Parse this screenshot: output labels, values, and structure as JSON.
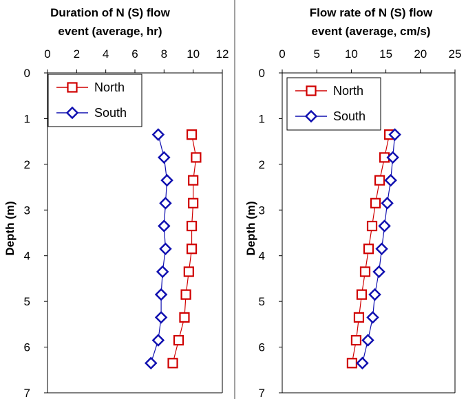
{
  "chart_data": [
    {
      "type": "scatter",
      "title_lines": [
        "Duration of N (S) flow",
        "event (average, hr)"
      ],
      "xlabel": "",
      "ylabel": "Depth (m)",
      "xlim": [
        0,
        12
      ],
      "xticks": [
        0,
        2,
        4,
        6,
        8,
        10,
        12
      ],
      "ylim": [
        0,
        7
      ],
      "yticks": [
        0,
        1,
        2,
        3,
        4,
        5,
        6,
        7
      ],
      "y_inverted": true,
      "x_axis_position": "top",
      "grid": false,
      "legend_position": "top-left",
      "series": [
        {
          "name": "North",
          "marker": "square",
          "color": "#d00000",
          "points": [
            {
              "x": 9.9,
              "y": 1.35
            },
            {
              "x": 10.2,
              "y": 1.85
            },
            {
              "x": 10.0,
              "y": 2.35
            },
            {
              "x": 10.0,
              "y": 2.85
            },
            {
              "x": 9.9,
              "y": 3.35
            },
            {
              "x": 9.9,
              "y": 3.85
            },
            {
              "x": 9.7,
              "y": 4.35
            },
            {
              "x": 9.5,
              "y": 4.85
            },
            {
              "x": 9.4,
              "y": 5.35
            },
            {
              "x": 9.0,
              "y": 5.85
            },
            {
              "x": 8.6,
              "y": 6.35
            }
          ]
        },
        {
          "name": "South",
          "marker": "diamond",
          "color": "#1010b0",
          "points": [
            {
              "x": 7.6,
              "y": 1.35
            },
            {
              "x": 8.0,
              "y": 1.85
            },
            {
              "x": 8.2,
              "y": 2.35
            },
            {
              "x": 8.1,
              "y": 2.85
            },
            {
              "x": 8.0,
              "y": 3.35
            },
            {
              "x": 8.1,
              "y": 3.85
            },
            {
              "x": 7.9,
              "y": 4.35
            },
            {
              "x": 7.8,
              "y": 4.85
            },
            {
              "x": 7.8,
              "y": 5.35
            },
            {
              "x": 7.6,
              "y": 5.85
            },
            {
              "x": 7.1,
              "y": 6.35
            }
          ]
        }
      ]
    },
    {
      "type": "scatter",
      "title_lines": [
        "Flow rate of N (S) flow",
        "event (average, cm/s)"
      ],
      "xlabel": "",
      "ylabel": "Depth (m)",
      "xlim": [
        0,
        25
      ],
      "xticks": [
        0,
        5,
        10,
        15,
        20,
        25
      ],
      "ylim": [
        0,
        7
      ],
      "yticks": [
        0,
        1,
        2,
        3,
        4,
        5,
        6,
        7
      ],
      "y_inverted": true,
      "x_axis_position": "top",
      "grid": false,
      "legend_position": "top-left",
      "series": [
        {
          "name": "North",
          "marker": "square",
          "color": "#d00000",
          "points": [
            {
              "x": 15.5,
              "y": 1.35
            },
            {
              "x": 14.8,
              "y": 1.85
            },
            {
              "x": 14.1,
              "y": 2.35
            },
            {
              "x": 13.5,
              "y": 2.85
            },
            {
              "x": 13.0,
              "y": 3.35
            },
            {
              "x": 12.5,
              "y": 3.85
            },
            {
              "x": 12.0,
              "y": 4.35
            },
            {
              "x": 11.5,
              "y": 4.85
            },
            {
              "x": 11.1,
              "y": 5.35
            },
            {
              "x": 10.7,
              "y": 5.85
            },
            {
              "x": 10.1,
              "y": 6.35
            }
          ]
        },
        {
          "name": "South",
          "marker": "diamond",
          "color": "#1010b0",
          "points": [
            {
              "x": 16.3,
              "y": 1.35
            },
            {
              "x": 16.0,
              "y": 1.85
            },
            {
              "x": 15.7,
              "y": 2.35
            },
            {
              "x": 15.2,
              "y": 2.85
            },
            {
              "x": 14.8,
              "y": 3.35
            },
            {
              "x": 14.4,
              "y": 3.85
            },
            {
              "x": 14.0,
              "y": 4.35
            },
            {
              "x": 13.4,
              "y": 4.85
            },
            {
              "x": 13.1,
              "y": 5.35
            },
            {
              "x": 12.4,
              "y": 5.85
            },
            {
              "x": 11.6,
              "y": 6.35
            }
          ]
        }
      ]
    }
  ]
}
